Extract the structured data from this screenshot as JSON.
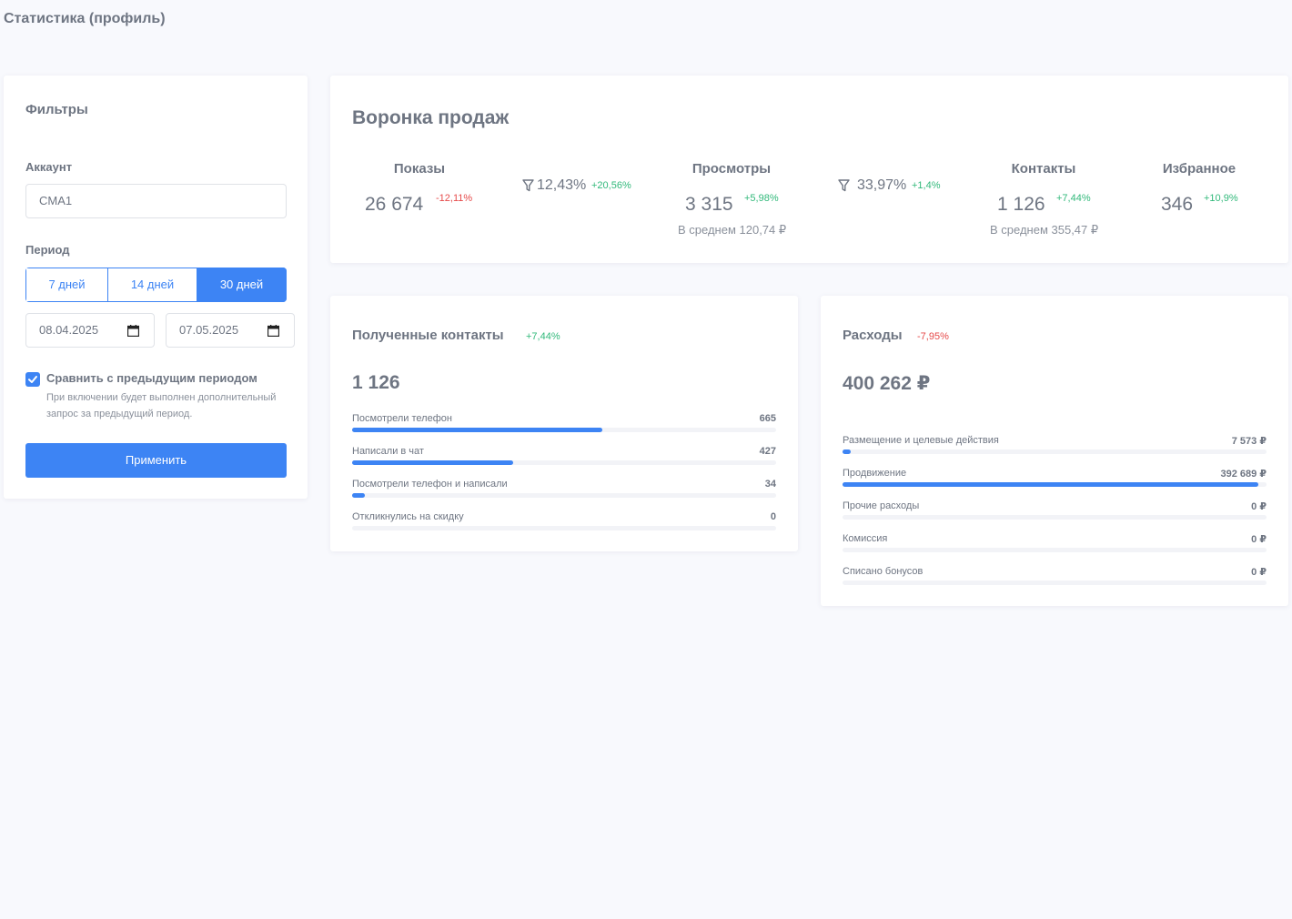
{
  "page": {
    "title": "Статистика (профиль)"
  },
  "filters": {
    "title": "Фильтры",
    "account_label": "Аккаунт",
    "account_value": "CMA1",
    "period_label": "Период",
    "periods": [
      {
        "label": "7 дней",
        "active": false
      },
      {
        "label": "14 дней",
        "active": false
      },
      {
        "label": "30 дней",
        "active": true
      }
    ],
    "date_from": "08.04.2025",
    "date_to": "07.05.2025",
    "compare_checked": true,
    "compare_label": "Сравнить с предыдущим периодом",
    "compare_hint": "При включении будет выполнен дополнительный запрос за предыдущий период.",
    "apply_label": "Применить"
  },
  "funnel": {
    "title": "Воронка продаж",
    "stages": [
      {
        "name": "Показы",
        "value": "26 674",
        "delta": "-12,11%",
        "trend": "negative",
        "avg": ""
      },
      {
        "name": "Просмотры",
        "value": "3 315",
        "delta": "+5,98%",
        "trend": "positive",
        "avg": "В среднем 120,74 ₽"
      },
      {
        "name": "Контакты",
        "value": "1 126",
        "delta": "+7,44%",
        "trend": "positive",
        "avg": "В среднем 355,47 ₽"
      },
      {
        "name": "Избранное",
        "value": "346",
        "delta": "+10,9%",
        "trend": "positive",
        "avg": ""
      }
    ],
    "conversions": [
      {
        "value": "12,43%",
        "delta": "+20,56%",
        "trend": "positive"
      },
      {
        "value": "33,97%",
        "delta": "+1,4%",
        "trend": "positive"
      }
    ]
  },
  "contacts": {
    "title": "Полученные контакты",
    "delta": "+7,44%",
    "total": "1 126",
    "items": [
      {
        "label": "Посмотрели телефон",
        "value": "665",
        "share": 0.59
      },
      {
        "label": "Написали в чат",
        "value": "427",
        "share": 0.38
      },
      {
        "label": "Посмотрели телефон и написали",
        "value": "34",
        "share": 0.03
      },
      {
        "label": "Откликнулись на скидку",
        "value": "0",
        "share": 0
      }
    ]
  },
  "expenses": {
    "title": "Расходы",
    "delta": "-7,95%",
    "total": "400 262 ₽",
    "items": [
      {
        "label": "Размещение и целевые действия",
        "value": "7 573 ₽",
        "share": 0.019
      },
      {
        "label": "Продвижение",
        "value": "392 689 ₽",
        "share": 0.981
      },
      {
        "label": "Прочие расходы",
        "value": "0 ₽",
        "share": 0
      },
      {
        "label": "Комиссия",
        "value": "0 ₽",
        "share": 0
      },
      {
        "label": "Списано бонусов",
        "value": "0 ₽",
        "share": 0
      }
    ]
  },
  "colors": {
    "accent": "#3d84f4",
    "positive": "#32b97b",
    "negative": "#e64a4a",
    "background": "#f8f9fd"
  },
  "icons": {
    "calendar": "calendar-icon",
    "funnel": "funnel-icon",
    "check": "checkmark-icon"
  }
}
